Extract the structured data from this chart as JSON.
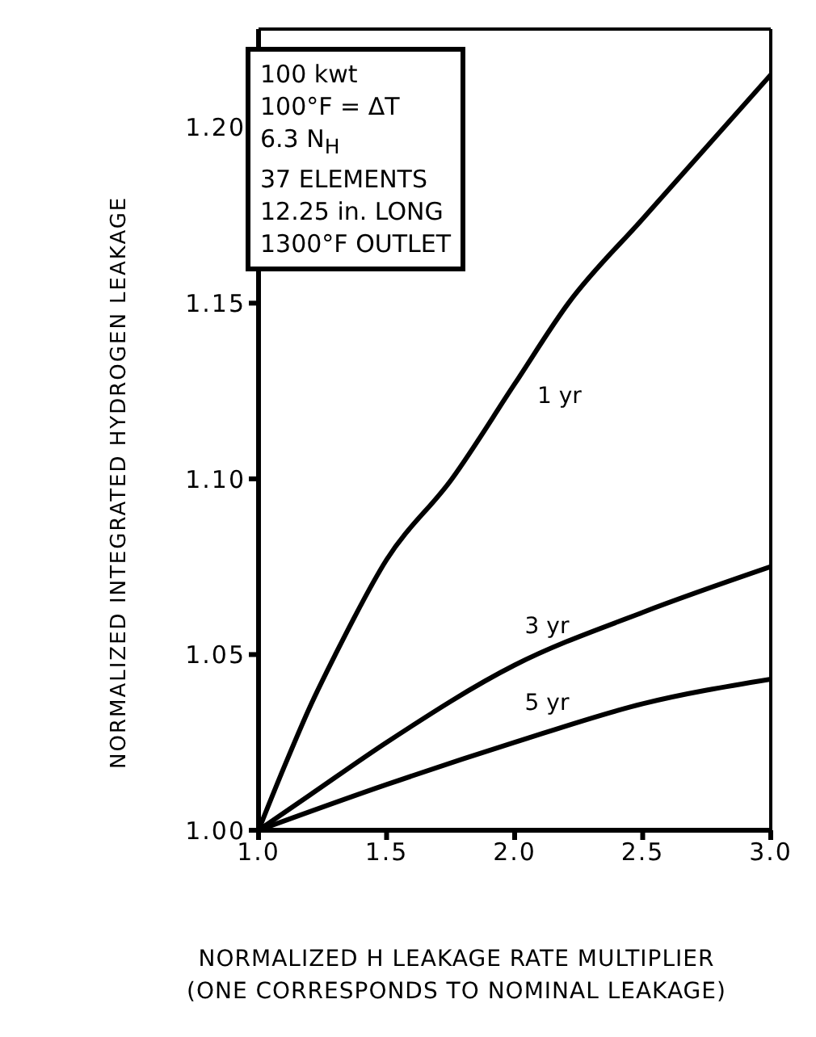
{
  "chart_data": {
    "type": "line",
    "xlabel": "NORMALIZED H LEAKAGE RATE MULTIPLIER\n(ONE CORRESPONDS TO NOMINAL LEAKAGE)",
    "ylabel": "NORMALIZED INTEGRATED HYDROGEN LEAKAGE",
    "annotations": [
      "100 kwt\n100°F = ΔT\n6.3 N$_{H}$\n37 ELEMENTS\n12.25 in. LONG\n1300°F OUTLET"
    ],
    "series": [
      {
        "name": "1 yr",
        "color": "#000000",
        "x": [
          1.0,
          1.1,
          1.2,
          1.3,
          1.5,
          1.755,
          2.0,
          2.21,
          2.5,
          3.0
        ],
        "values": [
          1.0,
          1.018,
          1.035,
          1.05,
          1.077,
          1.1,
          1.127,
          1.15,
          1.174,
          1.215
        ]
      },
      {
        "name": "3 yr",
        "color": "#000000",
        "x": [
          1.0,
          1.2,
          1.5,
          2.0,
          2.5,
          3.0
        ],
        "values": [
          1.0,
          1.01,
          1.025,
          1.047,
          1.062,
          1.075
        ]
      },
      {
        "name": "5 yr",
        "color": "#000000",
        "x": [
          1.0,
          1.5,
          2.0,
          2.5,
          3.0
        ],
        "values": [
          1.0,
          1.013,
          1.025,
          1.036,
          1.043
        ]
      }
    ],
    "xlim": [
      1.0,
      3.0
    ],
    "xticks": [
      {
        "value": 1,
        "label": "1.0"
      },
      1.5,
      {
        "value": 2,
        "label": "2.0"
      },
      2.5,
      {
        "value": 3,
        "label": "3.0"
      }
    ],
    "ylim": [
      1.0,
      1.228
    ],
    "yticks": [
      {
        "value": 1,
        "label": "1.00"
      },
      1.05,
      {
        "value": 1.1,
        "label": "1.10"
      },
      1.15,
      {
        "value": 1.2,
        "label": "1.20"
      }
    ],
    "legend": false,
    "marker": "none",
    "line_style": "solid"
  }
}
